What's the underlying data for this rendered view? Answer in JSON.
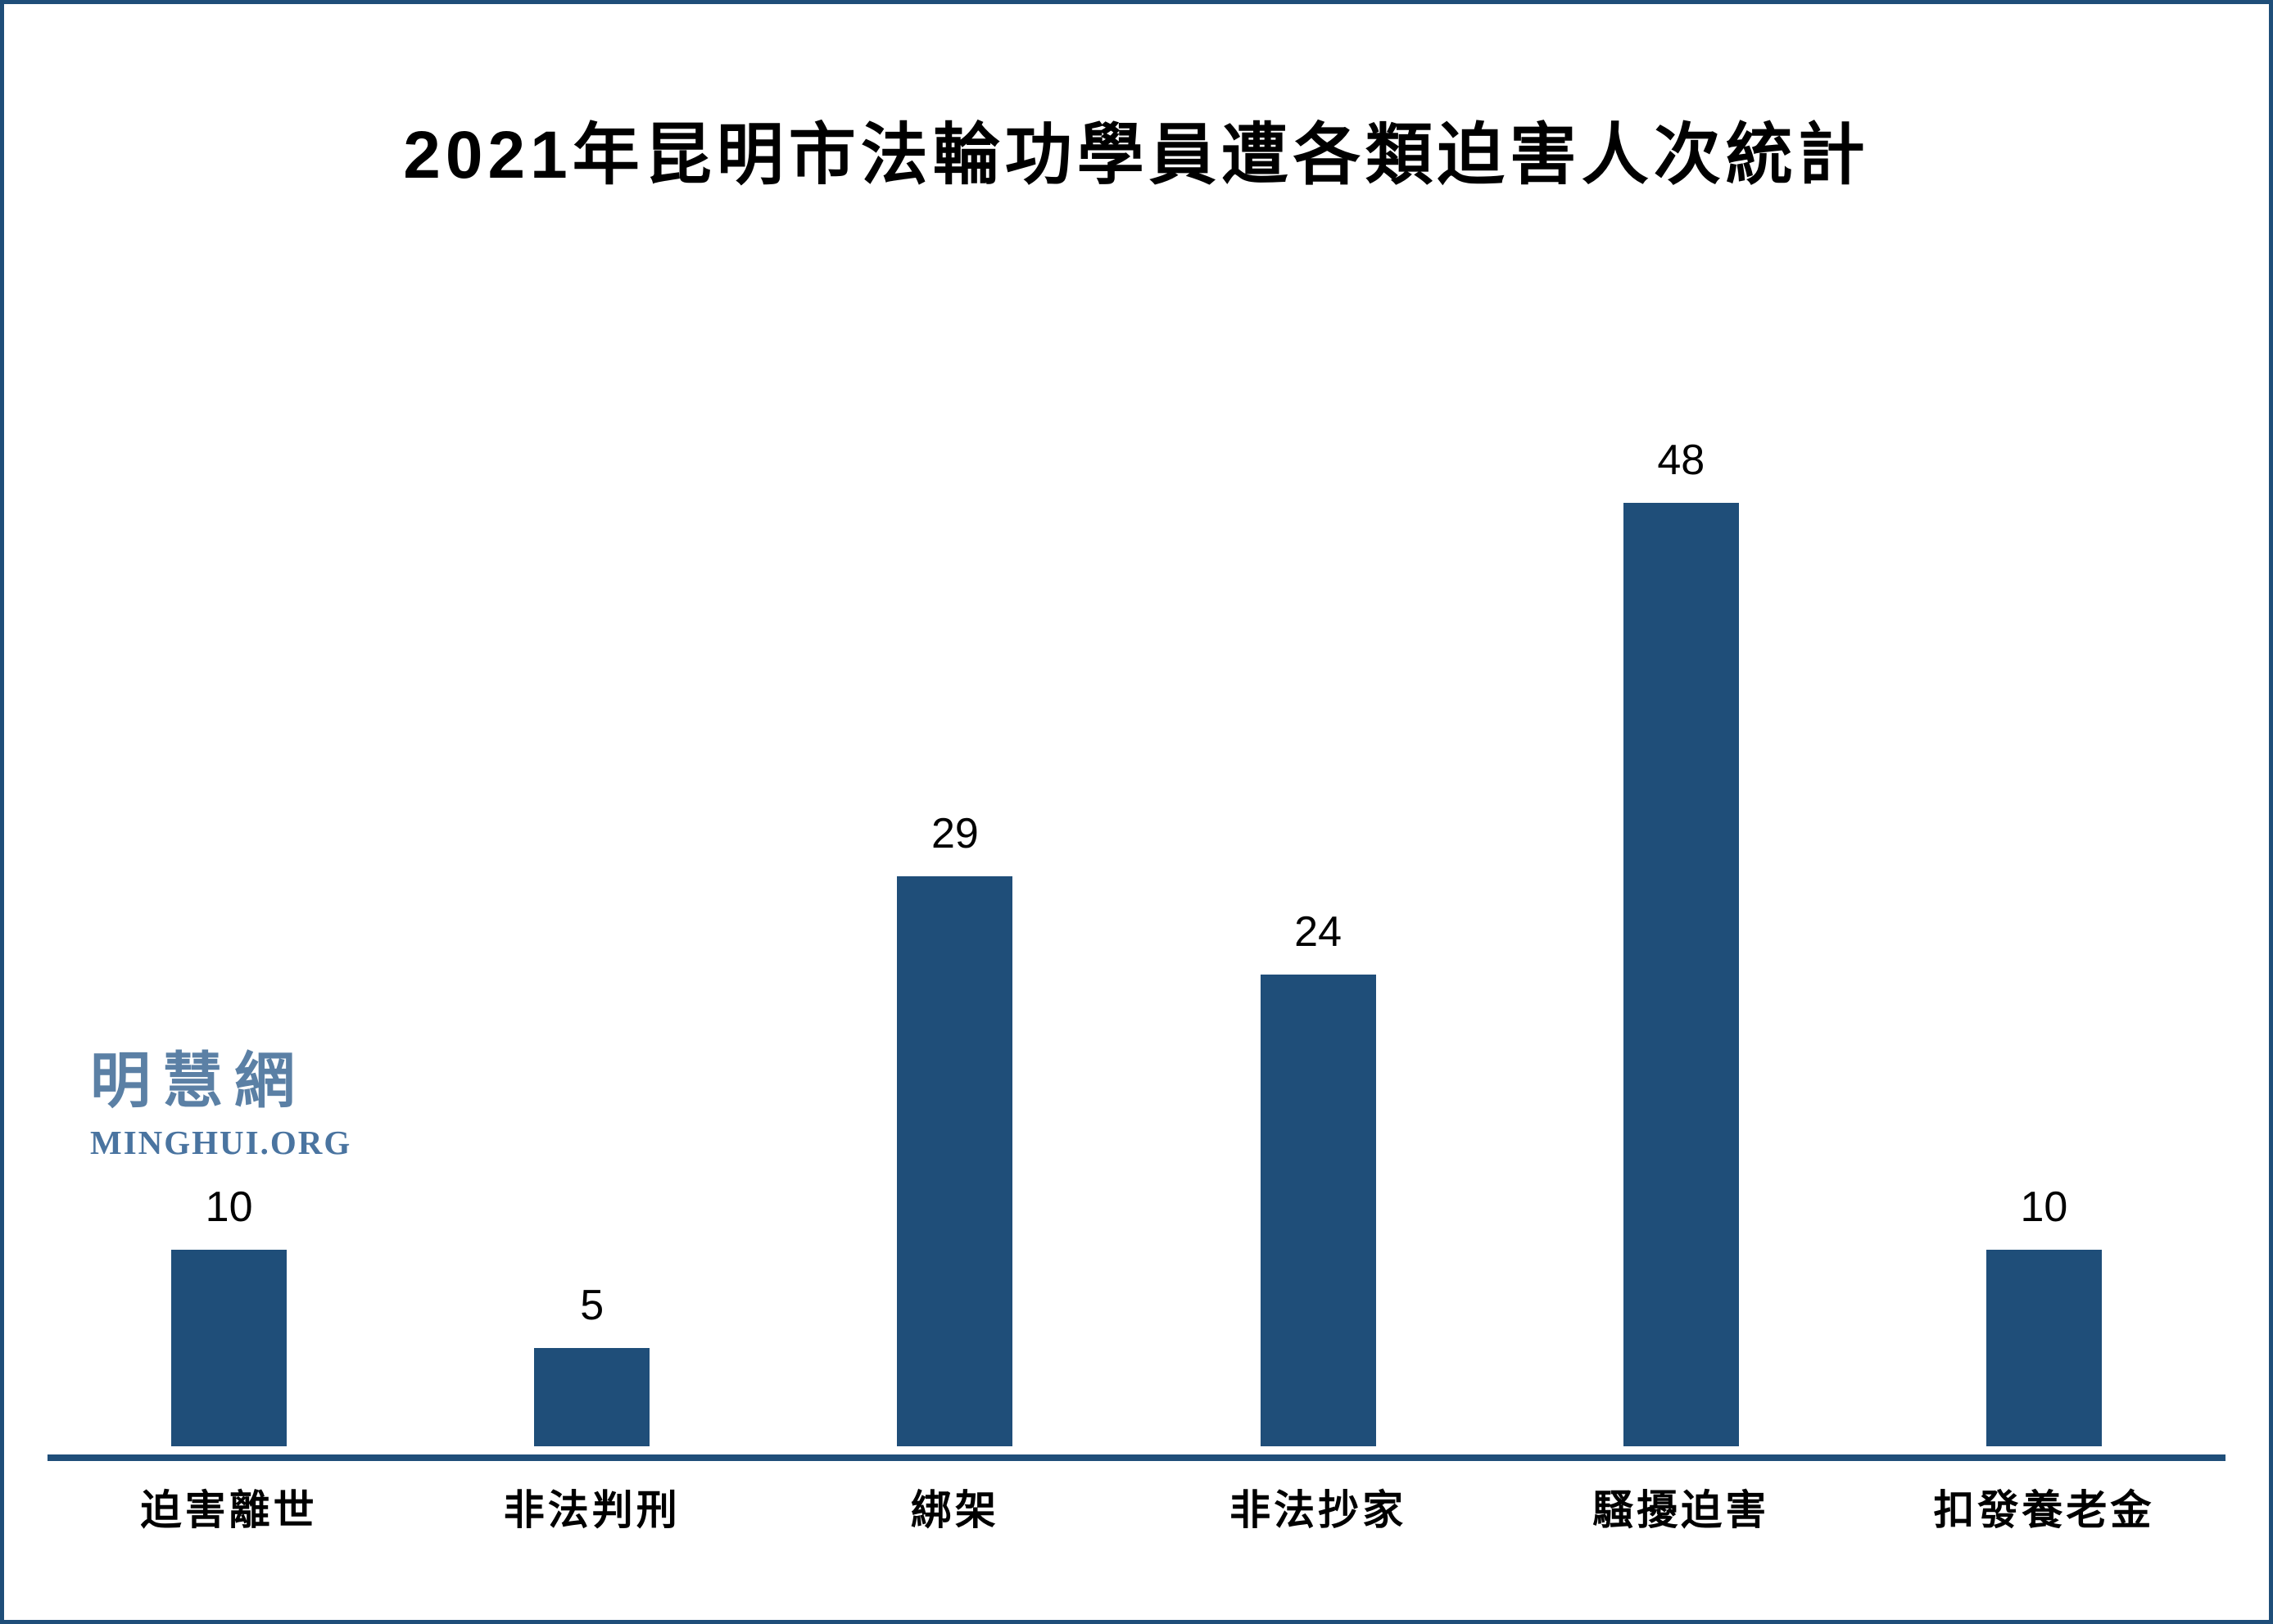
{
  "chart_data": {
    "type": "bar",
    "title": "2021年昆明市法輪功學員遭各類迫害人次統計",
    "categories": [
      "迫害離世",
      "非法判刑",
      "綁架",
      "非法抄家",
      "騷擾迫害",
      "扣發養老金"
    ],
    "values": [
      10,
      5,
      29,
      24,
      48,
      10
    ],
    "series_name": "人次",
    "data_labels": [
      10,
      5,
      29,
      24,
      48,
      10
    ],
    "xlabel": "",
    "ylabel": "",
    "ylim": [
      0,
      50
    ],
    "grid": false,
    "legend": false,
    "y_axis_visible": false,
    "x_axis_visible": true,
    "bar_color": "#1F4E79",
    "axis_color": "#1F4E79",
    "frame_border_color": "#1F4E79",
    "background_color": "#FFFFFF"
  },
  "watermark": {
    "logo_cjk": "明慧網",
    "logo_latin": "MINGHUI.ORG",
    "color": "#5B80A5"
  }
}
